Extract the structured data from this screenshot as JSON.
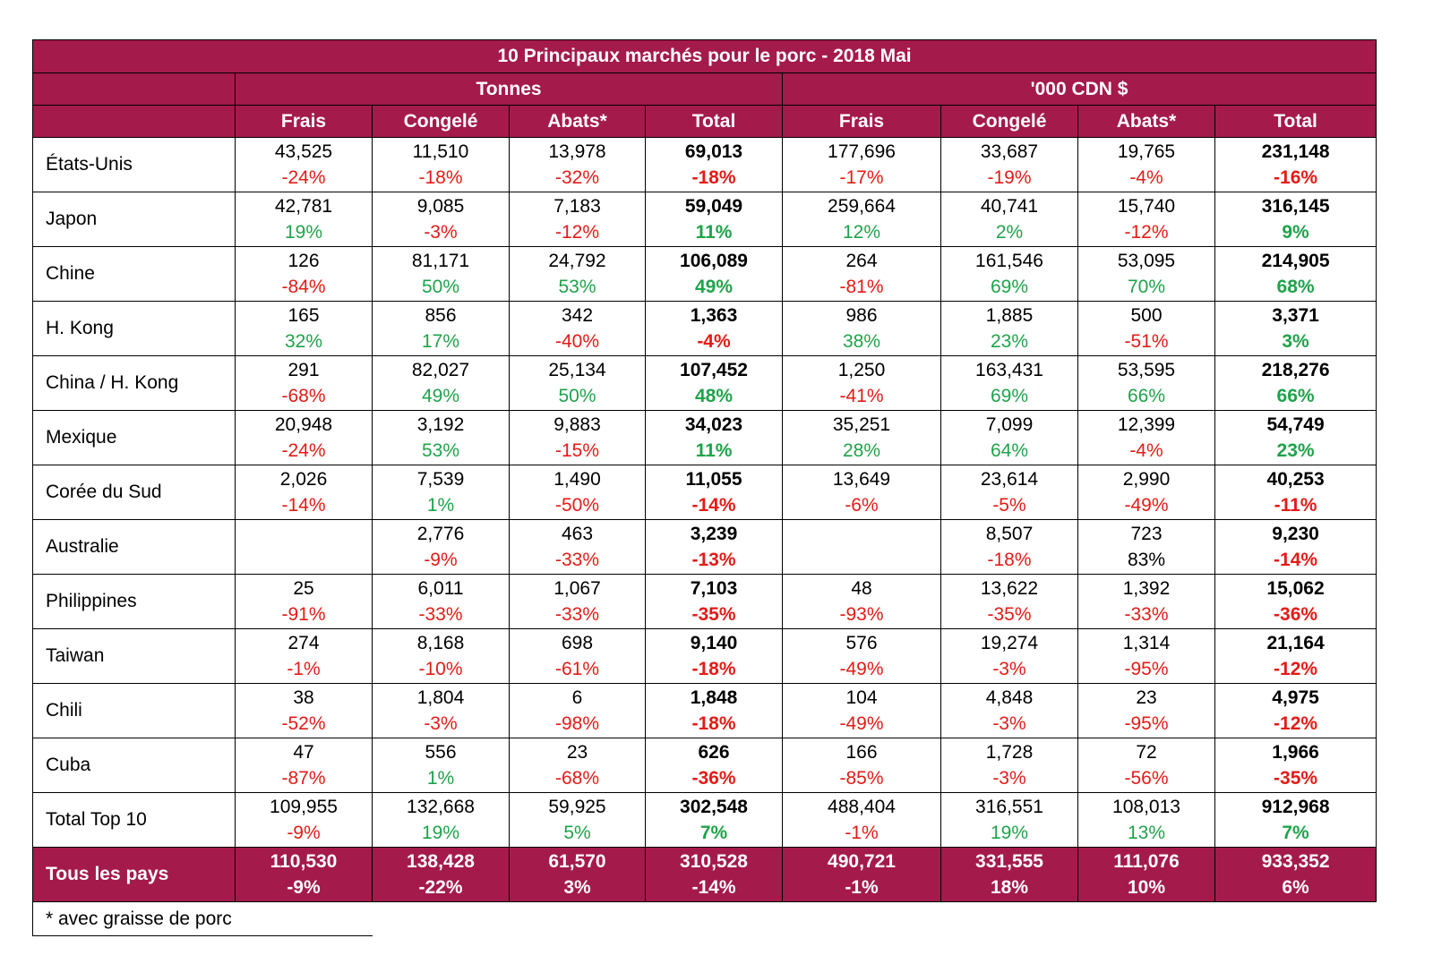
{
  "title": "10 Principaux marchés pour le porc - 2018 Mai",
  "groups": [
    "Tonnes",
    "'000 CDN $"
  ],
  "columns": [
    "Frais",
    "Congelé",
    "Abats*",
    "Total",
    "Frais",
    "Congelé",
    "Abats*",
    "Total"
  ],
  "colors": {
    "header_bg": "#a41a4b",
    "negative": "#e41b17",
    "positive": "#1fa34a"
  },
  "rows": [
    {
      "country": "États-Unis",
      "values": [
        "43,525",
        "11,510",
        "13,978",
        "69,013",
        "177,696",
        "33,687",
        "19,765",
        "231,148"
      ],
      "pcts": [
        "-24%",
        "-18%",
        "-32%",
        "-18%",
        "-17%",
        "-19%",
        "-4%",
        "-16%"
      ]
    },
    {
      "country": "Japon",
      "values": [
        "42,781",
        "9,085",
        "7,183",
        "59,049",
        "259,664",
        "40,741",
        "15,740",
        "316,145"
      ],
      "pcts": [
        "19%",
        "-3%",
        "-12%",
        "11%",
        "12%",
        "2%",
        "-12%",
        "9%"
      ]
    },
    {
      "country": "Chine",
      "values": [
        "126",
        "81,171",
        "24,792",
        "106,089",
        "264",
        "161,546",
        "53,095",
        "214,905"
      ],
      "pcts": [
        "-84%",
        "50%",
        "53%",
        "49%",
        "-81%",
        "69%",
        "70%",
        "68%"
      ]
    },
    {
      "country": "H. Kong",
      "values": [
        "165",
        "856",
        "342",
        "1,363",
        "986",
        "1,885",
        "500",
        "3,371"
      ],
      "pcts": [
        "32%",
        "17%",
        "-40%",
        "-4%",
        "38%",
        "23%",
        "-51%",
        "3%"
      ]
    },
    {
      "country": "China / H. Kong",
      "values": [
        "291",
        "82,027",
        "25,134",
        "107,452",
        "1,250",
        "163,431",
        "53,595",
        "218,276"
      ],
      "pcts": [
        "-68%",
        "49%",
        "50%",
        "48%",
        "-41%",
        "69%",
        "66%",
        "66%"
      ]
    },
    {
      "country": "Mexique",
      "values": [
        "20,948",
        "3,192",
        "9,883",
        "34,023",
        "35,251",
        "7,099",
        "12,399",
        "54,749"
      ],
      "pcts": [
        "-24%",
        "53%",
        "-15%",
        "11%",
        "28%",
        "64%",
        "-4%",
        "23%"
      ]
    },
    {
      "country": "Corée du Sud",
      "values": [
        "2,026",
        "7,539",
        "1,490",
        "11,055",
        "13,649",
        "23,614",
        "2,990",
        "40,253"
      ],
      "pcts": [
        "-14%",
        "1%",
        "-50%",
        "-14%",
        "-6%",
        "-5%",
        "-49%",
        "-11%"
      ]
    },
    {
      "country": "Australie",
      "values": [
        "",
        "2,776",
        "463",
        "3,239",
        "",
        "8,507",
        "723",
        "9,230"
      ],
      "pcts": [
        "",
        "-9%",
        "-33%",
        "-13%",
        "",
        "-18%",
        "83%",
        "-14%"
      ],
      "neutral": [
        6
      ]
    },
    {
      "country": "Philippines",
      "values": [
        "25",
        "6,011",
        "1,067",
        "7,103",
        "48",
        "13,622",
        "1,392",
        "15,062"
      ],
      "pcts": [
        "-91%",
        "-33%",
        "-33%",
        "-35%",
        "-93%",
        "-35%",
        "-33%",
        "-36%"
      ]
    },
    {
      "country": "Taiwan",
      "values": [
        "274",
        "8,168",
        "698",
        "9,140",
        "576",
        "19,274",
        "1,314",
        "21,164"
      ],
      "pcts": [
        "-1%",
        "-10%",
        "-61%",
        "-18%",
        "-49%",
        "-3%",
        "-95%",
        "-12%"
      ]
    },
    {
      "country": "Chili",
      "values": [
        "38",
        "1,804",
        "6",
        "1,848",
        "104",
        "4,848",
        "23",
        "4,975"
      ],
      "pcts": [
        "-52%",
        "-3%",
        "-98%",
        "-18%",
        "-49%",
        "-3%",
        "-95%",
        "-12%"
      ]
    },
    {
      "country": "Cuba",
      "values": [
        "47",
        "556",
        "23",
        "626",
        "166",
        "1,728",
        "72",
        "1,966"
      ],
      "pcts": [
        "-87%",
        "1%",
        "-68%",
        "-36%",
        "-85%",
        "-3%",
        "-56%",
        "-35%"
      ]
    },
    {
      "country": "Total Top 10",
      "values": [
        "109,955",
        "132,668",
        "59,925",
        "302,548",
        "488,404",
        "316,551",
        "108,013",
        "912,968"
      ],
      "pcts": [
        "-9%",
        "19%",
        "5%",
        "7%",
        "-1%",
        "19%",
        "13%",
        "7%"
      ]
    }
  ],
  "all_countries": {
    "country": "Tous les pays",
    "values": [
      "110,530",
      "138,428",
      "61,570",
      "310,528",
      "490,721",
      "331,555",
      "111,076",
      "933,352"
    ],
    "pcts": [
      "-9%",
      "-22%",
      "3%",
      "-14%",
      "-1%",
      "18%",
      "10%",
      "6%"
    ]
  },
  "footnote": "* avec graisse de porc"
}
